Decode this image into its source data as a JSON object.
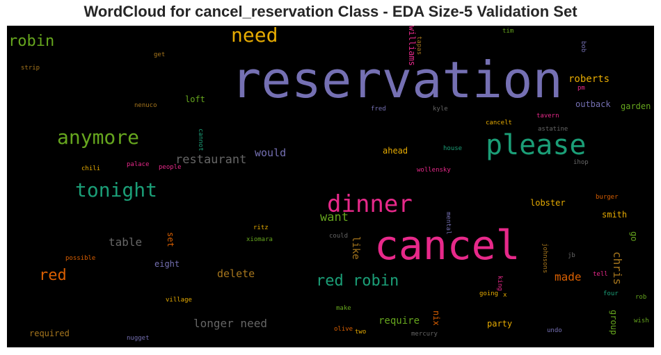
{
  "chart_data": {
    "type": "wordcloud",
    "title": "WordCloud for cancel_reservation Class - EDA Size-5 Validation Set",
    "background": "#000000",
    "words": [
      {
        "text": "reservation",
        "weight": 1.0,
        "color": "#7570b3"
      },
      {
        "text": "cancel",
        "weight": 0.88,
        "color": "#e7298a"
      },
      {
        "text": "please",
        "weight": 0.6,
        "color": "#1b9e77"
      },
      {
        "text": "dinner",
        "weight": 0.52,
        "color": "#e7298a"
      },
      {
        "text": "tonight",
        "weight": 0.45,
        "color": "#1b9e77"
      },
      {
        "text": "anymore",
        "weight": 0.45,
        "color": "#66a61e"
      },
      {
        "text": "need",
        "weight": 0.45,
        "color": "#e6ab02"
      },
      {
        "text": "red robin",
        "weight": 0.36,
        "color": "#1b9e77"
      },
      {
        "text": "robin",
        "weight": 0.33,
        "color": "#66a61e"
      },
      {
        "text": "red",
        "weight": 0.33,
        "color": "#d95f02"
      },
      {
        "text": "restaurant",
        "weight": 0.28,
        "color": "#666666"
      },
      {
        "text": "want",
        "weight": 0.28,
        "color": "#66a61e"
      },
      {
        "text": "longer need",
        "weight": 0.28,
        "color": "#666666"
      },
      {
        "text": "table",
        "weight": 0.27,
        "color": "#666666"
      },
      {
        "text": "made",
        "weight": 0.25,
        "color": "#d95f02"
      },
      {
        "text": "chris",
        "weight": 0.24,
        "color": "#a6761d"
      },
      {
        "text": "delete",
        "weight": 0.22,
        "color": "#a6761d"
      },
      {
        "text": "would",
        "weight": 0.22,
        "color": "#7570b3"
      },
      {
        "text": "require",
        "weight": 0.22,
        "color": "#66a61e"
      },
      {
        "text": "roberts",
        "weight": 0.21,
        "color": "#e6ab02"
      },
      {
        "text": "like",
        "weight": 0.2,
        "color": "#a6761d"
      },
      {
        "text": "outback",
        "weight": 0.19,
        "color": "#7570b3"
      },
      {
        "text": "ahead",
        "weight": 0.19,
        "color": "#e6ab02"
      },
      {
        "text": "smith",
        "weight": 0.19,
        "color": "#e6ab02"
      },
      {
        "text": "loft",
        "weight": 0.18,
        "color": "#66a61e"
      },
      {
        "text": "lobster",
        "weight": 0.18,
        "color": "#e6ab02"
      },
      {
        "text": "garden",
        "weight": 0.18,
        "color": "#66a61e"
      },
      {
        "text": "group",
        "weight": 0.18,
        "color": "#66a61e"
      },
      {
        "text": "williams",
        "weight": 0.18,
        "color": "#e7298a"
      },
      {
        "text": "party",
        "weight": 0.17,
        "color": "#e6ab02"
      },
      {
        "text": "eight",
        "weight": 0.17,
        "color": "#7570b3"
      },
      {
        "text": "required",
        "weight": 0.17,
        "color": "#a6761d"
      },
      {
        "text": "nix",
        "weight": 0.17,
        "color": "#d95f02"
      },
      {
        "text": "set",
        "weight": 0.17,
        "color": "#d95f02"
      },
      {
        "text": "go",
        "weight": 0.17,
        "color": "#66a61e"
      },
      {
        "text": "fred",
        "weight": 0.12,
        "color": "#7570b3"
      },
      {
        "text": "kyle",
        "weight": 0.12,
        "color": "#666666"
      },
      {
        "text": "tavern",
        "weight": 0.12,
        "color": "#e7298a"
      },
      {
        "text": "cancelt",
        "weight": 0.12,
        "color": "#e6ab02"
      },
      {
        "text": "astatine",
        "weight": 0.12,
        "color": "#666666"
      },
      {
        "text": "house",
        "weight": 0.12,
        "color": "#1b9e77"
      },
      {
        "text": "wollensky",
        "weight": 0.12,
        "color": "#e7298a"
      },
      {
        "text": "chili",
        "weight": 0.12,
        "color": "#e6ab02"
      },
      {
        "text": "palace",
        "weight": 0.12,
        "color": "#e7298a"
      },
      {
        "text": "people",
        "weight": 0.12,
        "color": "#e7298a"
      },
      {
        "text": "ihop",
        "weight": 0.12,
        "color": "#666666"
      },
      {
        "text": "burger",
        "weight": 0.12,
        "color": "#d95f02"
      },
      {
        "text": "ritz",
        "weight": 0.12,
        "color": "#e6ab02"
      },
      {
        "text": "xiomara",
        "weight": 0.12,
        "color": "#66a61e"
      },
      {
        "text": "could",
        "weight": 0.12,
        "color": "#666666"
      },
      {
        "text": "possible",
        "weight": 0.12,
        "color": "#d95f02"
      },
      {
        "text": "jb",
        "weight": 0.12,
        "color": "#666666"
      },
      {
        "text": "tell",
        "weight": 0.12,
        "color": "#e7298a"
      },
      {
        "text": "four",
        "weight": 0.12,
        "color": "#1b9e77"
      },
      {
        "text": "rob",
        "weight": 0.12,
        "color": "#66a61e"
      },
      {
        "text": "going",
        "weight": 0.12,
        "color": "#e6ab02"
      },
      {
        "text": "village",
        "weight": 0.12,
        "color": "#e6ab02"
      },
      {
        "text": "make",
        "weight": 0.12,
        "color": "#66a61e"
      },
      {
        "text": "wish",
        "weight": 0.12,
        "color": "#66a61e"
      },
      {
        "text": "olive",
        "weight": 0.12,
        "color": "#d95f02"
      },
      {
        "text": "two",
        "weight": 0.12,
        "color": "#e6ab02"
      },
      {
        "text": "mercury",
        "weight": 0.12,
        "color": "#666666"
      },
      {
        "text": "undo",
        "weight": 0.12,
        "color": "#7570b3"
      },
      {
        "text": "nugget",
        "weight": 0.12,
        "color": "#7570b3"
      },
      {
        "text": "strip",
        "weight": 0.12,
        "color": "#a6761d"
      },
      {
        "text": "get",
        "weight": 0.12,
        "color": "#a6761d"
      },
      {
        "text": "nenuco",
        "weight": 0.12,
        "color": "#a6761d"
      },
      {
        "text": "tim",
        "weight": 0.12,
        "color": "#66a61e"
      },
      {
        "text": "pm",
        "weight": 0.12,
        "color": "#e7298a"
      },
      {
        "text": "bob",
        "weight": 0.12,
        "color": "#7570b3"
      },
      {
        "text": "tapas",
        "weight": 0.12,
        "color": "#a6761d"
      },
      {
        "text": "cannot",
        "weight": 0.12,
        "color": "#1b9e77"
      },
      {
        "text": "mental",
        "weight": 0.12,
        "color": "#7570b3"
      },
      {
        "text": "johnsons",
        "weight": 0.12,
        "color": "#a6761d"
      },
      {
        "text": "king",
        "weight": 0.12,
        "color": "#e7298a"
      },
      {
        "text": "x",
        "weight": 0.12,
        "color": "#e6ab02"
      }
    ]
  }
}
